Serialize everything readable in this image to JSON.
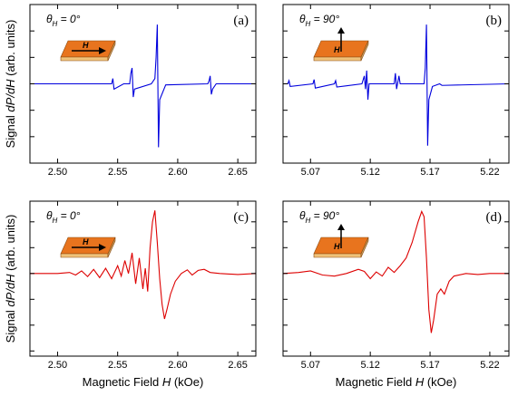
{
  "chart_data": [
    {
      "type": "line",
      "panel_label": "(a)",
      "angle_label": {
        "symbol": "θ",
        "subscript": "H",
        "text": " = 0°"
      },
      "inset_label": "H",
      "ylabel": [
        "Signal ",
        "dP/dH",
        " (arb. units)"
      ],
      "color": "#0000dd",
      "xlim": [
        2.477,
        2.665
      ],
      "xticks": [
        {
          "value": 2.5,
          "label": "2.50"
        },
        2.55,
        {
          "value": 2.6,
          "label": "2.60"
        },
        2.65
      ],
      "ylim": [
        -1.5,
        1.5
      ],
      "yticks": [
        -1,
        -0.5,
        0,
        0.5,
        1
      ],
      "x": [
        2.477,
        2.54,
        2.545,
        2.546,
        2.547,
        2.555,
        2.56,
        2.561,
        2.562,
        2.563,
        2.564,
        2.578,
        2.581,
        2.582,
        2.583,
        2.584,
        2.585,
        2.59,
        2.625,
        2.626,
        2.627,
        2.628,
        2.629,
        2.632,
        2.665
      ],
      "values": [
        0,
        0,
        0,
        0.1,
        -0.1,
        0,
        0,
        0.2,
        0.3,
        -0.25,
        -0.1,
        0,
        0.1,
        0.5,
        1.12,
        -1.2,
        -0.3,
        -0.02,
        0,
        0.05,
        0.15,
        -0.2,
        -0.1,
        0,
        0
      ]
    },
    {
      "type": "line",
      "panel_label": "(b)",
      "angle_label": {
        "symbol": "θ",
        "subscript": "H",
        "text": " = 90°"
      },
      "inset_label": "H",
      "color": "#0000dd",
      "xlim": [
        5.047,
        5.236
      ],
      "xticks": [
        5.07,
        5.12,
        5.17,
        5.22
      ],
      "ylim": [
        -1.5,
        1.5
      ],
      "yticks": [
        -1,
        -0.5,
        0,
        0.5,
        1
      ],
      "x": [
        5.047,
        5.051,
        5.052,
        5.053,
        5.072,
        5.073,
        5.074,
        5.09,
        5.091,
        5.092,
        5.113,
        5.115,
        5.116,
        5.117,
        5.118,
        5.119,
        5.14,
        5.141,
        5.142,
        5.144,
        5.145,
        5.165,
        5.166,
        5.167,
        5.168,
        5.169,
        5.172,
        5.178,
        5.18,
        5.236
      ],
      "values": [
        0,
        0,
        0.06,
        -0.05,
        0,
        0.08,
        -0.08,
        0,
        0.06,
        -0.06,
        0,
        0.15,
        -0.1,
        0.25,
        -0.3,
        0,
        0,
        0.2,
        -0.1,
        0.15,
        0,
        0,
        0.3,
        1.12,
        -1.17,
        -0.3,
        -0.05,
        0,
        -0.03,
        0
      ]
    },
    {
      "type": "line",
      "panel_label": "(c)",
      "angle_label": {
        "symbol": "θ",
        "subscript": "H",
        "text": " = 0°"
      },
      "inset_label": "H",
      "ylabel": [
        "Signal ",
        "dP/dH",
        " (arb. units)"
      ],
      "xlabel": [
        "Magnetic Field ",
        "H",
        " (kOe)"
      ],
      "color": "#dd0000",
      "xlim": [
        2.477,
        2.665
      ],
      "xticks": [
        {
          "value": 2.5,
          "label": "2.50"
        },
        2.55,
        {
          "value": 2.6,
          "label": "2.60"
        },
        2.65
      ],
      "ylim": [
        -1.6,
        1.4
      ],
      "yticks": [
        -1.5,
        -1,
        -0.5,
        0,
        0.5,
        1
      ],
      "x": [
        2.477,
        2.5,
        2.51,
        2.515,
        2.52,
        2.525,
        2.53,
        2.535,
        2.54,
        2.545,
        2.55,
        2.553,
        2.556,
        2.559,
        2.562,
        2.565,
        2.568,
        2.571,
        2.573,
        2.575,
        2.577,
        2.579,
        2.581,
        2.583,
        2.585,
        2.587,
        2.589,
        2.591,
        2.594,
        2.598,
        2.603,
        2.608,
        2.612,
        2.617,
        2.622,
        2.627,
        2.635,
        2.65,
        2.665
      ],
      "values": [
        0,
        0,
        0.02,
        -0.03,
        0.05,
        -0.06,
        0.08,
        -0.08,
        0.1,
        -0.1,
        0.15,
        -0.05,
        0.25,
        0,
        0.4,
        -0.2,
        0.3,
        -0.3,
        0.1,
        -0.35,
        0.5,
        1.0,
        1.22,
        0.6,
        -0.1,
        -0.6,
        -0.88,
        -0.7,
        -0.4,
        -0.15,
        0,
        0.07,
        -0.03,
        0.06,
        0.08,
        0.02,
        0,
        -0.02,
        0
      ]
    },
    {
      "type": "line",
      "panel_label": "(d)",
      "angle_label": {
        "symbol": "θ",
        "subscript": "H",
        "text": " = 90°"
      },
      "inset_label": "H",
      "xlabel": [
        "Magnetic Field ",
        "H",
        " (kOe)"
      ],
      "color": "#dd0000",
      "xlim": [
        5.047,
        5.236
      ],
      "xticks": [
        5.07,
        5.12,
        5.17,
        5.22
      ],
      "ylim": [
        -1.6,
        1.4
      ],
      "yticks": [
        -1.5,
        -1,
        -0.5,
        0,
        0.5,
        1
      ],
      "x": [
        5.047,
        5.06,
        5.07,
        5.08,
        5.09,
        5.1,
        5.11,
        5.115,
        5.12,
        5.125,
        5.13,
        5.135,
        5.14,
        5.145,
        5.15,
        5.155,
        5.16,
        5.163,
        5.165,
        5.167,
        5.169,
        5.171,
        5.173,
        5.176,
        5.179,
        5.182,
        5.186,
        5.19,
        5.2,
        5.21,
        5.22,
        5.236
      ],
      "values": [
        0,
        0.02,
        0.05,
        -0.03,
        -0.05,
        0,
        0.08,
        0.04,
        -0.1,
        0.03,
        -0.05,
        0.12,
        0.02,
        0.15,
        0.3,
        0.6,
        1.0,
        1.2,
        1.1,
        0.3,
        -0.7,
        -1.15,
        -0.9,
        -0.4,
        -0.3,
        -0.4,
        -0.15,
        -0.05,
        0,
        -0.02,
        0,
        0
      ]
    }
  ]
}
